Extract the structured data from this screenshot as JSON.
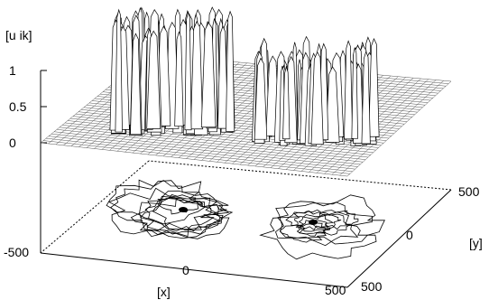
{
  "chart_data": {
    "type": "surface",
    "zlabel": "[u ik]",
    "xlabel": "[x]",
    "ylabel": "[y]",
    "z_ticks": [
      "1",
      "0.5",
      "0"
    ],
    "x_ticks": [
      "-500",
      "0",
      "500"
    ],
    "y_ticks": [
      "500",
      "0",
      "500"
    ],
    "xlim": [
      -500,
      500
    ],
    "ylim": [
      -500,
      500
    ],
    "zlim": [
      0,
      1
    ],
    "grid": false,
    "legend": "none",
    "surface_baseline": 0,
    "peak_regions": [
      {
        "center_x": -250,
        "center_y": 100,
        "peak_value": 1
      },
      {
        "center_x": 250,
        "center_y": 100,
        "peak_value": 1
      }
    ],
    "contour_regions": [
      {
        "center_x": -250,
        "center_y": 100
      },
      {
        "center_x": 250,
        "center_y": 100
      }
    ],
    "colors": {
      "line": "#000000",
      "background": "#ffffff"
    }
  }
}
